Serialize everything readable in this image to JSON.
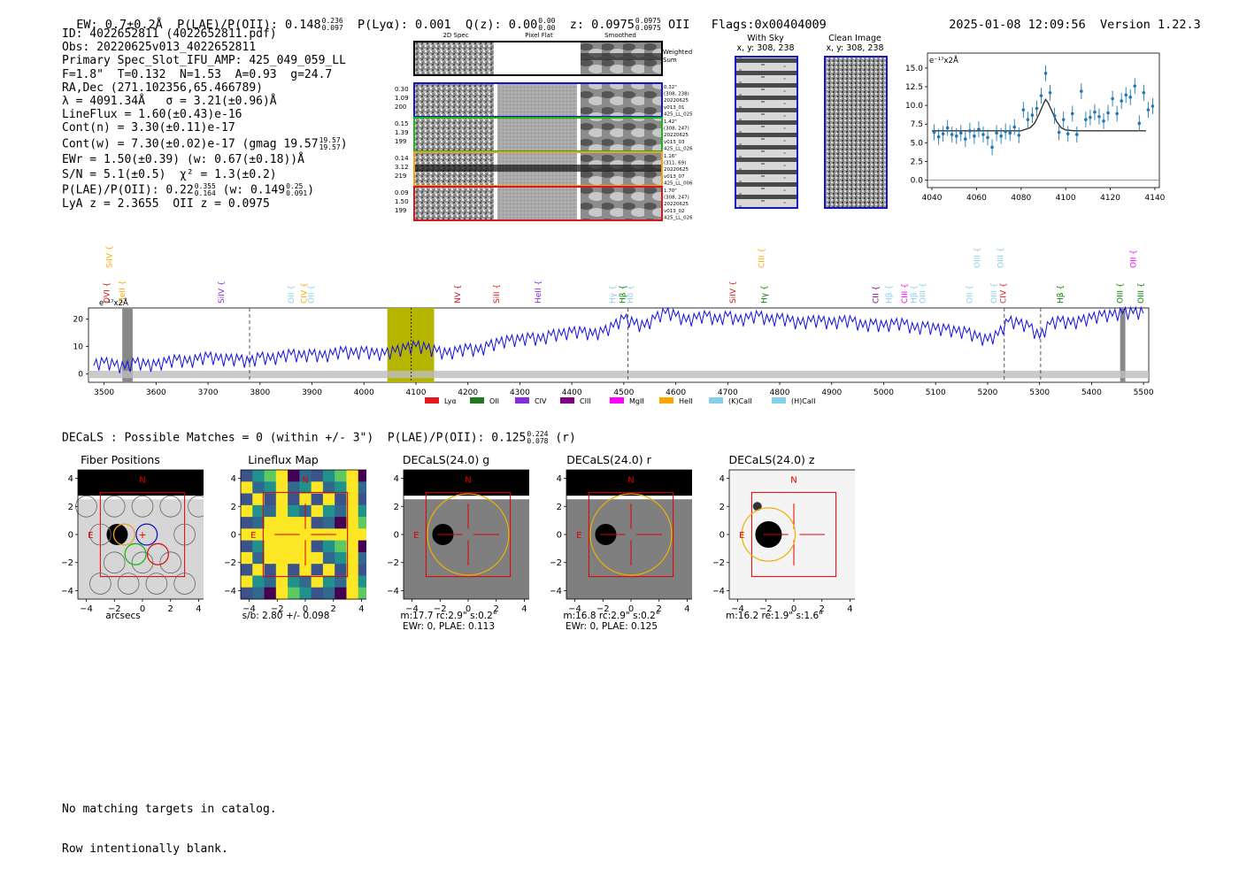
{
  "header": {
    "ew": "EW: 0.7±0.2Å",
    "plae_label": "P(LAE)/P(OII): 0.148",
    "plae_hi": "0.236",
    "plae_lo": "0.097",
    "plya": "P(Lyα): 0.001",
    "qz_label": "Q(z): 0.00",
    "qz_hi": "0.00",
    "qz_lo": "0.00",
    "z_label": "z: 0.0975",
    "z_hi": "0.0975",
    "z_lo": "0.0975",
    "z_line": "OII",
    "flags": "Flags:0x00404009",
    "timestamp": "2025-01-08 12:09:56",
    "version": "Version 1.22.3"
  },
  "info": {
    "id": "ID: 4022652811 (4022652811.pdf)",
    "obs": "Obs: 20220625v013_4022652811",
    "primary": "Primary Spec_Slot_IFU_AMP: 425_049_059_LL",
    "params": "F=1.8\"  T=0.132  N=1.53  A=0.93  g=24.7",
    "radec": "RA,Dec (271.102356,65.466789)",
    "lambda": "λ = 4091.34Å   σ = 3.21(±0.96)Å",
    "lineflux": "LineFlux = 1.60(±0.43)e-16",
    "contn": "Cont(n) = 3.30(±0.11)e-17",
    "contw": "Cont(w) = 7.30(±0.02)e-17 (gmag 19.57",
    "contw_hi": "19.57",
    "contw_lo": "19.57",
    "contw_end": ")",
    "ewr": "EWr = 1.50(±0.39) (w: 0.67(±0.18))Å",
    "sn": "S/N = 5.1(±0.5)  χ² = 1.3(±0.2)",
    "plae": "P(LAE)/P(OII): 0.22",
    "plae_hi": "0.355",
    "plae_lo": "0.164",
    "plae_w": "(w: 0.149",
    "plae_w_hi": "0.25",
    "plae_w_lo": "0.091",
    "plae_w_end": ")",
    "lyaz": "LyA z = 2.3655  OII z = 0.0975"
  },
  "cutouts": {
    "col_headers": [
      "2D Spec",
      "Pixel Flat",
      "Smoothed"
    ],
    "weighted_sum": [
      "Weighted",
      "Sum"
    ],
    "rows": [
      {
        "color": "#1515c8",
        "left": [
          "0.30",
          "1.09",
          "200"
        ],
        "right": [
          "0.32\"",
          "(308, 238)",
          "20220625",
          "v013_01",
          "425_LL_025"
        ]
      },
      {
        "color": "#18b818",
        "left": [
          "0.15",
          "1.39",
          "199"
        ],
        "right": [
          "1.42\"",
          "(308, 247)",
          "20220625",
          "v013_03",
          "425_LL_026"
        ]
      },
      {
        "color": "#f0a020",
        "left": [
          "0.14",
          "3.12",
          "219"
        ],
        "right": [
          "1.16\"",
          "(311, 69)",
          "20220625",
          "v013_07",
          "425_LL_006"
        ]
      },
      {
        "color": "#d81818",
        "left": [
          "0.09",
          "1.50",
          "199"
        ],
        "right": [
          "1.70\"",
          "(308, 247)",
          "20220625",
          "v013_02",
          "425_LL_026"
        ]
      }
    ],
    "with_sky_title": "With Sky",
    "with_sky_coords": "x, y: 308, 238",
    "clean_title": "Clean Image",
    "clean_coords": "x, y: 308, 238"
  },
  "zoom_chart": {
    "units": "e⁻¹⁷x2Å"
  },
  "full_spec": {
    "units": "e⁻¹⁷x2Å",
    "line_labels": [
      {
        "name": "SiIV",
        "w": 3510,
        "row": 0,
        "color": "#ffa500"
      },
      {
        "name": "OVI",
        "w": 3505,
        "row": 1,
        "color": "#d81818"
      },
      {
        "name": "HeII",
        "w": 3535,
        "row": 1,
        "color": "#ffa500"
      },
      {
        "name": "SiIV",
        "w": 3725,
        "row": 1,
        "color": "#8a2be2"
      },
      {
        "name": "OII",
        "w": 3860,
        "row": 1,
        "color": "#87ceeb"
      },
      {
        "name": "CIV",
        "w": 3885,
        "row": 1,
        "color": "#ffa500"
      },
      {
        "name": "OII",
        "w": 3898,
        "row": 1,
        "color": "#87ceeb"
      },
      {
        "name": "NV",
        "w": 4180,
        "row": 1,
        "color": "#d81818"
      },
      {
        "name": "SiII",
        "w": 4255,
        "row": 1,
        "color": "#d81818"
      },
      {
        "name": "HeII",
        "w": 4335,
        "row": 1,
        "color": "#8a2be2"
      },
      {
        "name": "Hγ",
        "w": 4478,
        "row": 1,
        "color": "#87ceeb"
      },
      {
        "name": "Hβ",
        "w": 4498,
        "row": 1,
        "color": "#008000"
      },
      {
        "name": "Hδ",
        "w": 4512,
        "row": 1,
        "color": "#87ceeb"
      },
      {
        "name": "SiIV",
        "w": 4710,
        "row": 1,
        "color": "#d81818"
      },
      {
        "name": "CIII",
        "w": 4765,
        "row": 0,
        "color": "#ffa500"
      },
      {
        "name": "Hγ",
        "w": 4770,
        "row": 1,
        "color": "#008000"
      },
      {
        "name": "CII",
        "w": 4985,
        "row": 1,
        "color": "#800080"
      },
      {
        "name": "Hβ",
        "w": 5010,
        "row": 1,
        "color": "#87ceeb"
      },
      {
        "name": "CIII",
        "w": 5040,
        "row": 1,
        "color": "#ff00ff"
      },
      {
        "name": "Hβ",
        "w": 5058,
        "row": 1,
        "color": "#87ceeb"
      },
      {
        "name": "OIII",
        "w": 5075,
        "row": 1,
        "color": "#87ceeb"
      },
      {
        "name": "OIII",
        "w": 5180,
        "row": 0,
        "color": "#87ceeb"
      },
      {
        "name": "OII",
        "w": 5165,
        "row": 1,
        "color": "#87ceeb"
      },
      {
        "name": "OIII",
        "w": 5225,
        "row": 0,
        "color": "#87ceeb"
      },
      {
        "name": "OIII",
        "w": 5212,
        "row": 1,
        "color": "#87ceeb"
      },
      {
        "name": "CIV",
        "w": 5230,
        "row": 1,
        "color": "#d81818"
      },
      {
        "name": "Hβ",
        "w": 5340,
        "row": 1,
        "color": "#008000"
      },
      {
        "name": "OII",
        "w": 5480,
        "row": 0,
        "color": "#ff00ff"
      },
      {
        "name": "OIII",
        "w": 5455,
        "row": 1,
        "color": "#008000"
      },
      {
        "name": "OIII",
        "w": 5495,
        "row": 1,
        "color": "#008000"
      }
    ],
    "legend": [
      {
        "label": "Lyα",
        "color": "#e31a1c"
      },
      {
        "label": "OII",
        "color": "#1f7a1f"
      },
      {
        "label": "CIV",
        "color": "#8a2be2"
      },
      {
        "label": "CIII",
        "color": "#800080"
      },
      {
        "label": "MgII",
        "color": "#ff00ff"
      },
      {
        "label": "HeII",
        "color": "#ffa500"
      },
      {
        "label": "(K)CaII",
        "color": "#87ceeb"
      },
      {
        "label": "(H)CaII",
        "color": "#87ceeb"
      }
    ]
  },
  "decals": {
    "line_main": "DECaLS : Possible Matches = 0 (within +/- 3\")  P(LAE)/P(OII): 0.125",
    "hi": "0.224",
    "lo": "0.078",
    "band": "(r)",
    "panels": [
      {
        "title": "Fiber Positions",
        "caption1": "arcsecs",
        "caption2": ""
      },
      {
        "title": "Lineflux Map",
        "caption1": "s/b: 2.80 +/- 0.098",
        "caption2": ""
      },
      {
        "title": "DECaLS(24.0) g",
        "caption1": "m:17.7 rc:2.9\"  s:0.2\"",
        "caption2": "EWr: 0, PLAE: 0.113"
      },
      {
        "title": "DECaLS(24.0) r",
        "caption1": "m:16.8 rc:2.9\"  s:0.2\"",
        "caption2": "EWr: 0, PLAE: 0.125"
      },
      {
        "title": "DECaLS(24.0) z",
        "caption1": "m:16.2  re:1.9\"  s:1.6\"",
        "caption2": ""
      }
    ],
    "north": "N",
    "east": "E"
  },
  "footer": {
    "line1": "No matching targets in catalog.",
    "line2": "Row intentionally blank."
  },
  "chart_data": [
    {
      "type": "scatter",
      "xlim": [
        4038,
        4142
      ],
      "ylim": [
        -1,
        17
      ],
      "x_ticks": [
        4040,
        4060,
        4080,
        4100,
        4120,
        4140
      ],
      "y_ticks": [
        0.0,
        2.5,
        5.0,
        7.5,
        10.0,
        12.5,
        15.0
      ],
      "ylabel": "e⁻¹⁷x2Å",
      "series": [
        {
          "x": [
            4041,
            4043,
            4045,
            4047,
            4049,
            4051,
            4053,
            4055,
            4057,
            4059,
            4061,
            4063,
            4065,
            4067,
            4069,
            4071,
            4073,
            4075,
            4077,
            4079,
            4081,
            4083,
            4085,
            4087,
            4089,
            4091,
            4093,
            4095,
            4097,
            4099,
            4101,
            4103,
            4105,
            4107,
            4109,
            4111,
            4113,
            4115,
            4117,
            4119,
            4121,
            4123,
            4125,
            4127,
            4129,
            4131,
            4133,
            4135,
            4137,
            4139
          ],
          "values": [
            6.4,
            5.8,
            6.2,
            7.0,
            6.1,
            5.9,
            6.3,
            5.5,
            6.6,
            5.9,
            6.8,
            6.1,
            5.7,
            4.4,
            6.3,
            5.9,
            6.5,
            6.3,
            7.1,
            6.0,
            9.4,
            8.1,
            8.7,
            9.6,
            11.3,
            14.3,
            11.7,
            8.6,
            6.4,
            8.1,
            6.2,
            8.9,
            6.1,
            11.9,
            8.1,
            8.4,
            9.1,
            8.5,
            7.9,
            9.0,
            10.9,
            8.9,
            10.6,
            11.4,
            11.1,
            12.6,
            7.6,
            11.7,
            9.4,
            9.9
          ]
        },
        {
          "x": [
            4040,
            4050,
            4060,
            4070,
            4080,
            4084,
            4086,
            4088,
            4090,
            4091,
            4092,
            4094,
            4096,
            4098,
            4100,
            4104,
            4110,
            4120,
            4130,
            4136
          ],
          "values": [
            6.6,
            6.6,
            6.6,
            6.6,
            6.6,
            7.0,
            7.6,
            8.8,
            10.2,
            10.8,
            10.4,
            9.1,
            7.8,
            7.0,
            6.7,
            6.6,
            6.6,
            6.6,
            6.6,
            6.6
          ]
        }
      ]
    },
    {
      "type": "line",
      "xlim": [
        3470,
        5510
      ],
      "ylim": [
        -3,
        24
      ],
      "x_ticks": [
        3500,
        3600,
        3700,
        3800,
        3900,
        4000,
        4100,
        4200,
        4300,
        4400,
        4500,
        4600,
        4700,
        4800,
        4900,
        5000,
        5100,
        5200,
        5300,
        5400,
        5500
      ],
      "y_ticks": [
        0,
        10,
        20
      ],
      "ylabel": "e⁻¹⁷x2Å",
      "highlight_band": [
        4045,
        4135
      ],
      "emission_wave": 4091,
      "dashed_lines": [
        3780,
        4508,
        5232,
        5302
      ],
      "masked_bands": [
        [
          3535,
          3555
        ],
        [
          5455,
          5465
        ]
      ],
      "series": [
        {
          "x": [
            3480,
            3500,
            3520,
            3540,
            3560,
            3580,
            3600,
            3620,
            3640,
            3660,
            3680,
            3700,
            3720,
            3740,
            3760,
            3780,
            3800,
            3820,
            3840,
            3860,
            3880,
            3900,
            3920,
            3940,
            3960,
            3980,
            4000,
            4020,
            4040,
            4060,
            4080,
            4100,
            4120,
            4140,
            4160,
            4180,
            4200,
            4220,
            4240,
            4260,
            4280,
            4300,
            4320,
            4340,
            4360,
            4380,
            4400,
            4420,
            4440,
            4460,
            4480,
            4500,
            4520,
            4540,
            4560,
            4580,
            4600,
            4620,
            4640,
            4660,
            4680,
            4700,
            4720,
            4740,
            4760,
            4780,
            4800,
            4820,
            4840,
            4860,
            4880,
            4900,
            4920,
            4940,
            4960,
            4980,
            5000,
            5020,
            5040,
            5060,
            5080,
            5100,
            5120,
            5140,
            5160,
            5180,
            5200,
            5220,
            5240,
            5260,
            5280,
            5300,
            5320,
            5340,
            5360,
            5380,
            5400,
            5420,
            5440,
            5460,
            5480,
            5500
          ],
          "values": [
            3,
            4,
            3,
            2,
            4,
            3,
            3,
            4,
            5,
            4,
            5,
            6,
            5,
            5,
            5,
            4,
            6,
            5,
            6,
            7,
            6,
            7,
            6,
            7,
            8,
            7,
            8,
            7,
            7,
            8,
            9,
            10,
            9,
            8,
            7,
            8,
            9,
            8,
            10,
            11,
            12,
            12,
            13,
            12,
            14,
            14,
            15,
            15,
            14,
            15,
            17,
            20,
            18,
            17,
            20,
            22,
            21,
            19,
            20,
            21,
            19,
            21,
            19,
            20,
            21,
            19,
            20,
            19,
            18,
            19,
            19,
            18,
            19,
            19,
            17,
            18,
            17,
            18,
            18,
            16,
            17,
            16,
            16,
            15,
            15,
            13,
            12,
            14,
            19,
            18,
            17,
            13,
            18,
            19,
            18,
            19,
            20,
            21,
            21,
            22,
            22,
            22
          ]
        }
      ]
    }
  ]
}
